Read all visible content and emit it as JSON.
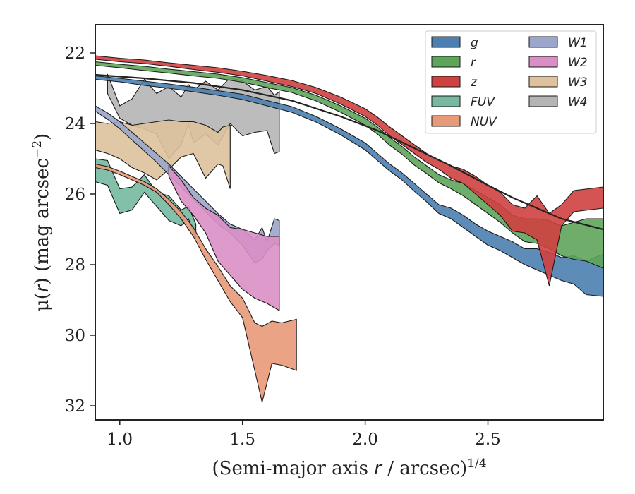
{
  "chart_data": {
    "type": "area",
    "title": "",
    "xlabel_main": "(Semi-major axis ",
    "xlabel_var": "r",
    "xlabel_rest": " / arcsec)",
    "xlabel_sup": "1/4",
    "ylabel_main": "μ(",
    "ylabel_var": "r",
    "ylabel_rest": ") (mag arcsec",
    "ylabel_sup": "−2",
    "ylabel_close": ")",
    "xlim": [
      0.9,
      2.97
    ],
    "ylim": [
      32.4,
      21.2
    ],
    "y_inverted": true,
    "xticks": [
      {
        "v": 1.0,
        "label": "1.0"
      },
      {
        "v": 1.5,
        "label": "1.5"
      },
      {
        "v": 2.0,
        "label": "2.0"
      },
      {
        "v": 2.5,
        "label": "2.5"
      }
    ],
    "yticks": [
      {
        "v": 22,
        "label": "22"
      },
      {
        "v": 24,
        "label": "24"
      },
      {
        "v": 26,
        "label": "26"
      },
      {
        "v": 28,
        "label": "28"
      },
      {
        "v": 30,
        "label": "30"
      },
      {
        "v": 32,
        "label": "32"
      }
    ],
    "grid": false,
    "legend_position": "top-right",
    "legend_columns": 2,
    "series": [
      {
        "name": "g",
        "color": "#4c7fb0",
        "x": [
          0.9,
          1.0,
          1.1,
          1.2,
          1.3,
          1.4,
          1.5,
          1.6,
          1.7,
          1.8,
          1.9,
          2.0,
          2.05,
          2.1,
          2.15,
          2.2,
          2.25,
          2.3,
          2.35,
          2.4,
          2.45,
          2.5,
          2.55,
          2.6,
          2.65,
          2.7,
          2.75,
          2.8,
          2.85,
          2.9,
          2.97
        ],
        "lo": [
          22.65,
          22.72,
          22.8,
          22.88,
          22.97,
          23.07,
          23.17,
          23.35,
          23.52,
          23.8,
          24.15,
          24.55,
          24.85,
          25.15,
          25.4,
          25.7,
          26.0,
          26.3,
          26.4,
          26.6,
          26.85,
          27.05,
          27.2,
          27.35,
          27.55,
          27.55,
          27.65,
          27.8,
          27.75,
          27.9,
          27.7
        ],
        "hi": [
          22.75,
          22.82,
          22.92,
          23.0,
          23.1,
          23.2,
          23.32,
          23.5,
          23.68,
          23.96,
          24.32,
          24.75,
          25.05,
          25.35,
          25.6,
          25.92,
          26.22,
          26.55,
          26.7,
          26.95,
          27.2,
          27.45,
          27.6,
          27.8,
          28.0,
          28.15,
          28.3,
          28.45,
          28.55,
          28.85,
          28.9
        ]
      },
      {
        "name": "r",
        "color": "#5ea55a",
        "x": [
          0.9,
          1.0,
          1.1,
          1.2,
          1.3,
          1.4,
          1.5,
          1.6,
          1.7,
          1.8,
          1.9,
          2.0,
          2.05,
          2.1,
          2.15,
          2.2,
          2.25,
          2.3,
          2.35,
          2.4,
          2.45,
          2.5,
          2.55,
          2.6,
          2.65,
          2.7,
          2.75,
          2.8,
          2.85,
          2.9,
          2.97
        ],
        "lo": [
          22.25,
          22.32,
          22.38,
          22.46,
          22.53,
          22.6,
          22.7,
          22.84,
          22.98,
          23.2,
          23.5,
          23.85,
          24.1,
          24.4,
          24.65,
          24.95,
          25.2,
          25.45,
          25.6,
          25.7,
          25.9,
          26.1,
          26.3,
          26.6,
          26.7,
          26.7,
          26.75,
          26.9,
          26.8,
          26.7,
          26.7
        ],
        "hi": [
          22.35,
          22.42,
          22.5,
          22.57,
          22.65,
          22.72,
          22.83,
          22.98,
          23.12,
          23.36,
          23.68,
          24.05,
          24.3,
          24.62,
          24.87,
          25.18,
          25.42,
          25.68,
          25.85,
          26.05,
          26.3,
          26.55,
          26.8,
          27.1,
          27.35,
          27.4,
          27.55,
          27.75,
          27.85,
          27.9,
          28.1
        ]
      },
      {
        "name": "z",
        "color": "#cf4040",
        "x": [
          0.9,
          1.0,
          1.1,
          1.2,
          1.3,
          1.4,
          1.5,
          1.6,
          1.7,
          1.8,
          1.9,
          2.0,
          2.05,
          2.1,
          2.15,
          2.2,
          2.25,
          2.3,
          2.35,
          2.4,
          2.45,
          2.5,
          2.55,
          2.6,
          2.65,
          2.7,
          2.75,
          2.8,
          2.85,
          2.97
        ],
        "lo": [
          22.08,
          22.15,
          22.2,
          22.28,
          22.35,
          22.42,
          22.52,
          22.64,
          22.78,
          22.98,
          23.25,
          23.58,
          23.82,
          24.1,
          24.35,
          24.6,
          24.85,
          25.05,
          25.2,
          25.3,
          25.5,
          25.75,
          25.95,
          26.3,
          26.4,
          26.05,
          26.55,
          26.3,
          25.9,
          25.8
        ],
        "hi": [
          22.18,
          22.25,
          22.3,
          22.38,
          22.47,
          22.55,
          22.65,
          22.8,
          22.95,
          23.15,
          23.45,
          23.8,
          24.05,
          24.35,
          24.6,
          24.85,
          25.1,
          25.3,
          25.55,
          25.7,
          26.0,
          26.3,
          26.6,
          27.05,
          27.1,
          27.3,
          28.6,
          26.9,
          26.5,
          26.4
        ]
      },
      {
        "name": "FUV",
        "color": "#76b9a0",
        "x": [
          0.9,
          0.95,
          1.0,
          1.05,
          1.1,
          1.15,
          1.2,
          1.25,
          1.28,
          1.31
        ],
        "lo": [
          25.0,
          25.05,
          25.85,
          25.8,
          25.45,
          25.95,
          26.05,
          26.45,
          26.35,
          26.85
        ],
        "hi": [
          25.65,
          25.75,
          26.55,
          26.45,
          25.95,
          26.35,
          26.75,
          26.9,
          26.7,
          27.25
        ]
      },
      {
        "name": "NUV",
        "color": "#e89a78",
        "x": [
          0.9,
          0.95,
          1.0,
          1.05,
          1.1,
          1.15,
          1.2,
          1.25,
          1.3,
          1.35,
          1.4,
          1.45,
          1.5,
          1.55,
          1.58,
          1.62,
          1.66,
          1.72
        ],
        "lo": [
          25.15,
          25.22,
          25.35,
          25.5,
          25.65,
          25.85,
          26.15,
          26.5,
          26.95,
          27.55,
          28.05,
          28.6,
          28.95,
          29.65,
          29.75,
          29.6,
          29.65,
          29.55
        ],
        "hi": [
          25.25,
          25.32,
          25.45,
          25.6,
          25.75,
          25.95,
          26.3,
          26.7,
          27.2,
          27.85,
          28.45,
          29.05,
          29.5,
          31.0,
          31.9,
          30.8,
          30.85,
          31.0
        ]
      },
      {
        "name": "W1",
        "color": "#9aa6ca",
        "x": [
          0.9,
          0.95,
          1.0,
          1.05,
          1.1,
          1.15,
          1.2,
          1.25,
          1.3,
          1.35,
          1.4,
          1.45,
          1.5,
          1.55,
          1.58,
          1.6,
          1.63,
          1.65
        ],
        "lo": [
          23.5,
          23.7,
          23.95,
          24.25,
          24.55,
          24.85,
          25.15,
          25.5,
          25.85,
          26.2,
          26.55,
          26.85,
          27.0,
          27.3,
          26.95,
          27.35,
          26.7,
          26.75
        ],
        "hi": [
          23.65,
          23.88,
          24.15,
          24.47,
          24.78,
          25.1,
          25.45,
          25.8,
          26.15,
          26.5,
          26.85,
          27.1,
          27.45,
          27.95,
          27.85,
          27.6,
          27.4,
          27.45
        ]
      },
      {
        "name": "W2",
        "color": "#da8fc4",
        "x": [
          1.2,
          1.25,
          1.3,
          1.35,
          1.4,
          1.45,
          1.5,
          1.55,
          1.6,
          1.65
        ],
        "lo": [
          25.2,
          25.6,
          26.1,
          26.4,
          26.6,
          26.95,
          27.0,
          27.1,
          27.2,
          27.2
        ],
        "hi": [
          25.5,
          26.2,
          26.6,
          27.1,
          27.9,
          28.3,
          28.7,
          28.95,
          29.1,
          29.3
        ]
      },
      {
        "name": "W3",
        "color": "#ddc29c",
        "x": [
          0.9,
          0.95,
          1.0,
          1.05,
          1.1,
          1.15,
          1.2,
          1.25,
          1.3,
          1.35,
          1.4,
          1.42,
          1.45
        ],
        "lo": [
          23.95,
          24.0,
          23.95,
          24.05,
          24.0,
          23.95,
          23.9,
          23.95,
          23.95,
          24.05,
          24.25,
          24.1,
          24.05
        ],
        "hi": [
          24.75,
          24.85,
          25.0,
          25.25,
          25.4,
          25.6,
          25.3,
          24.95,
          24.85,
          25.55,
          25.15,
          25.2,
          25.85
        ]
      },
      {
        "name": "W4",
        "color": "#b5b5b5",
        "x": [
          0.95,
          1.0,
          1.05,
          1.1,
          1.15,
          1.2,
          1.25,
          1.28,
          1.3,
          1.35,
          1.4,
          1.45,
          1.5,
          1.55,
          1.6,
          1.63,
          1.65
        ],
        "lo": [
          22.6,
          23.5,
          23.3,
          22.75,
          23.15,
          22.95,
          23.25,
          22.9,
          23.05,
          22.8,
          23.05,
          22.7,
          22.8,
          23.05,
          22.95,
          23.2,
          23.1
        ],
        "hi": [
          23.15,
          23.85,
          24.05,
          24.15,
          24.3,
          25.0,
          24.6,
          24.0,
          24.55,
          24.3,
          24.6,
          24.0,
          24.35,
          24.25,
          24.2,
          24.85,
          24.8
        ]
      }
    ],
    "lines": [
      {
        "name": "r",
        "color": "#222222",
        "x": [
          0.9,
          1.1,
          1.3,
          1.5,
          1.7,
          1.9,
          2.05,
          2.2,
          2.35,
          2.5,
          2.6,
          2.7,
          2.8,
          2.97
        ],
        "y": [
          22.62,
          22.72,
          22.85,
          23.05,
          23.35,
          23.8,
          24.2,
          24.7,
          25.2,
          25.75,
          26.1,
          26.4,
          26.7,
          27.0
        ]
      }
    ]
  }
}
